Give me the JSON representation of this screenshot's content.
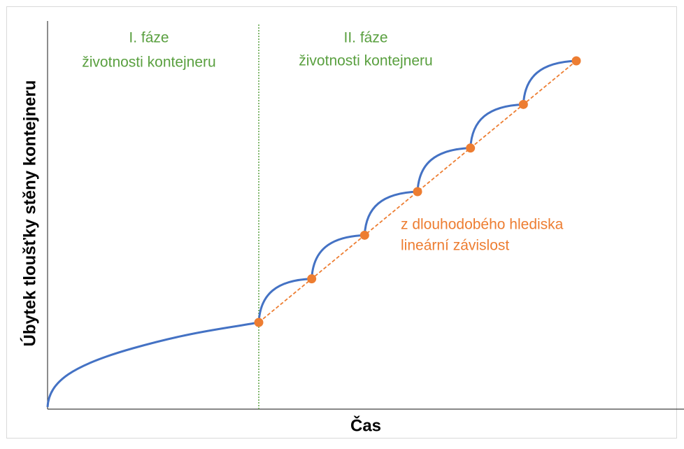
{
  "phase_1": {
    "title": "I. fáze",
    "subtitle": "životnosti kontejneru"
  },
  "phase_2": {
    "title": "II. fáze",
    "subtitle": "životnosti kontejneru"
  },
  "annotation": [
    "z dlouhodobého hlediska",
    "lineární závislost"
  ],
  "y_axis_label": "Úbytek tloušťky stěny kontejneru",
  "x_axis_label": "Čas"
}
